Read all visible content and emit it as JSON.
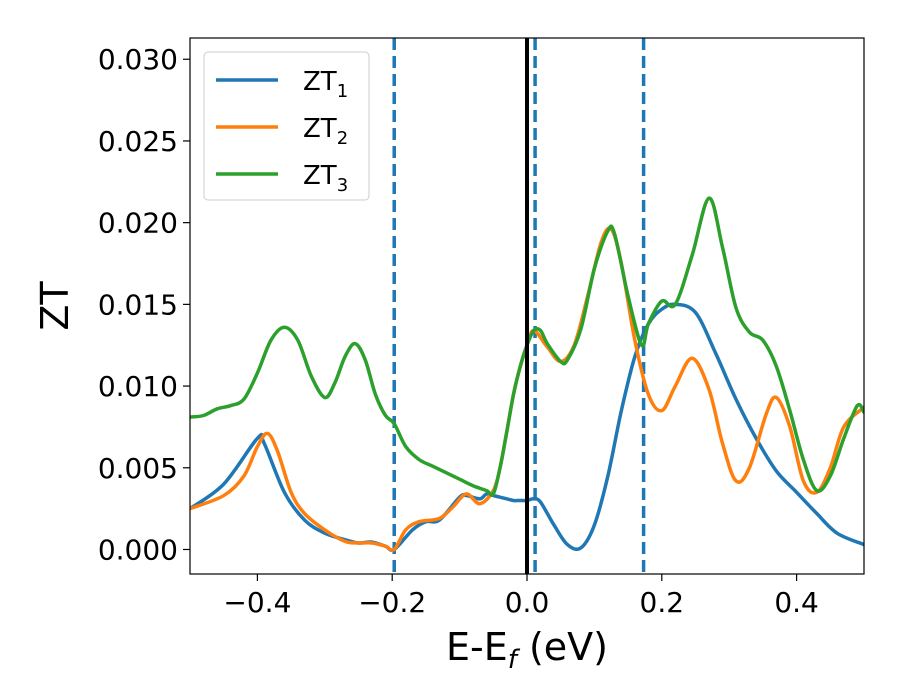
{
  "chart_data": {
    "type": "line",
    "xlabel": "E-E",
    "xlabel_sub": "f",
    "xlabel_unit": " (eV)",
    "ylabel": "ZT",
    "xlim": [
      -0.5,
      0.5
    ],
    "ylim": [
      -0.0015,
      0.0313
    ],
    "xticks": [
      -0.4,
      -0.2,
      0.0,
      0.2,
      0.4
    ],
    "xtick_labels": [
      "−0.4",
      "−0.2",
      "0.0",
      "0.2",
      "0.4"
    ],
    "yticks": [
      0.0,
      0.005,
      0.01,
      0.015,
      0.02,
      0.025,
      0.03
    ],
    "ytick_labels": [
      "0.000",
      "0.005",
      "0.010",
      "0.015",
      "0.020",
      "0.025",
      "0.030"
    ],
    "legend_position": "upper-left",
    "vertical_lines": [
      {
        "x": 0.0,
        "color": "#000000",
        "style": "solid"
      },
      {
        "x": -0.197,
        "color": "#1f77b4",
        "style": "dashed"
      },
      {
        "x": 0.012,
        "color": "#1f77b4",
        "style": "dashed"
      },
      {
        "x": 0.173,
        "color": "#1f77b4",
        "style": "dashed"
      }
    ],
    "series": [
      {
        "name": "ZT",
        "sub": "1",
        "color": "#1f77b4",
        "x": [
          -0.5,
          -0.45,
          -0.4,
          -0.39,
          -0.36,
          -0.33,
          -0.3,
          -0.27,
          -0.25,
          -0.23,
          -0.21,
          -0.197,
          -0.17,
          -0.15,
          -0.13,
          -0.1,
          -0.09,
          -0.07,
          -0.06,
          -0.05,
          -0.04,
          -0.03,
          -0.02,
          -0.01,
          0.0,
          0.01,
          0.02,
          0.04,
          0.06,
          0.08,
          0.1,
          0.12,
          0.14,
          0.16,
          0.18,
          0.2,
          0.22,
          0.25,
          0.28,
          0.31,
          0.34,
          0.37,
          0.4,
          0.43,
          0.46,
          0.5
        ],
        "y": [
          0.0025,
          0.004,
          0.0068,
          0.0065,
          0.0035,
          0.0018,
          0.001,
          0.0006,
          0.0004,
          0.00045,
          0.0002,
          0.0,
          0.0012,
          0.0017,
          0.0018,
          0.0032,
          0.0033,
          0.0031,
          0.0034,
          0.0033,
          0.0032,
          0.0031,
          0.003,
          0.003,
          0.003,
          0.0031,
          0.0029,
          0.0015,
          0.0003,
          0.0001,
          0.0015,
          0.0045,
          0.0085,
          0.0118,
          0.0138,
          0.0147,
          0.015,
          0.0145,
          0.012,
          0.0092,
          0.0068,
          0.0048,
          0.0035,
          0.0022,
          0.001,
          0.0003
        ]
      },
      {
        "name": "ZT",
        "sub": "2",
        "color": "#ff7f0e",
        "x": [
          -0.5,
          -0.45,
          -0.42,
          -0.4,
          -0.385,
          -0.37,
          -0.35,
          -0.33,
          -0.3,
          -0.27,
          -0.25,
          -0.23,
          -0.21,
          -0.197,
          -0.18,
          -0.16,
          -0.13,
          -0.11,
          -0.09,
          -0.07,
          -0.05,
          -0.04,
          -0.03,
          -0.02,
          -0.01,
          0.0,
          0.01,
          0.03,
          0.05,
          0.07,
          0.09,
          0.11,
          0.125,
          0.14,
          0.16,
          0.18,
          0.2,
          0.22,
          0.245,
          0.27,
          0.29,
          0.31,
          0.33,
          0.355,
          0.37,
          0.39,
          0.41,
          0.43,
          0.45,
          0.47,
          0.5
        ],
        "y": [
          0.0025,
          0.0033,
          0.0045,
          0.0063,
          0.0071,
          0.006,
          0.0035,
          0.0022,
          0.0012,
          0.0005,
          0.0004,
          0.0004,
          0.0002,
          0.0,
          0.0012,
          0.0017,
          0.0019,
          0.0026,
          0.0034,
          0.0028,
          0.0036,
          0.005,
          0.0072,
          0.0095,
          0.0112,
          0.0125,
          0.0134,
          0.0124,
          0.0115,
          0.0125,
          0.0155,
          0.0188,
          0.0196,
          0.0175,
          0.0128,
          0.0095,
          0.0085,
          0.01,
          0.0117,
          0.0098,
          0.0065,
          0.0042,
          0.005,
          0.0083,
          0.0093,
          0.0075,
          0.0042,
          0.0035,
          0.005,
          0.0075,
          0.0087
        ]
      },
      {
        "name": "ZT",
        "sub": "3",
        "color": "#2ca02c",
        "x": [
          -0.5,
          -0.48,
          -0.46,
          -0.44,
          -0.42,
          -0.4,
          -0.38,
          -0.36,
          -0.34,
          -0.32,
          -0.3,
          -0.285,
          -0.27,
          -0.255,
          -0.24,
          -0.225,
          -0.21,
          -0.197,
          -0.18,
          -0.16,
          -0.14,
          -0.12,
          -0.1,
          -0.08,
          -0.06,
          -0.05,
          -0.04,
          -0.03,
          -0.02,
          -0.01,
          0.0,
          0.01,
          0.02,
          0.03,
          0.05,
          0.06,
          0.08,
          0.1,
          0.12,
          0.13,
          0.15,
          0.17,
          0.18,
          0.2,
          0.22,
          0.245,
          0.27,
          0.29,
          0.31,
          0.33,
          0.35,
          0.37,
          0.39,
          0.41,
          0.43,
          0.45,
          0.47,
          0.49,
          0.5
        ],
        "y": [
          0.0081,
          0.0082,
          0.0086,
          0.0088,
          0.0092,
          0.0108,
          0.0128,
          0.0136,
          0.0128,
          0.0106,
          0.0093,
          0.0102,
          0.0118,
          0.0126,
          0.0116,
          0.0095,
          0.0082,
          0.0077,
          0.0063,
          0.0055,
          0.0051,
          0.0047,
          0.0043,
          0.0039,
          0.0036,
          0.0034,
          0.005,
          0.0072,
          0.0095,
          0.0112,
          0.0125,
          0.0134,
          0.0134,
          0.0126,
          0.0115,
          0.0116,
          0.0135,
          0.0172,
          0.0195,
          0.0193,
          0.0155,
          0.0125,
          0.0138,
          0.0152,
          0.015,
          0.018,
          0.0215,
          0.0185,
          0.0148,
          0.0133,
          0.0128,
          0.0112,
          0.0085,
          0.0055,
          0.0036,
          0.0045,
          0.0068,
          0.0088,
          0.0084
        ]
      }
    ]
  }
}
